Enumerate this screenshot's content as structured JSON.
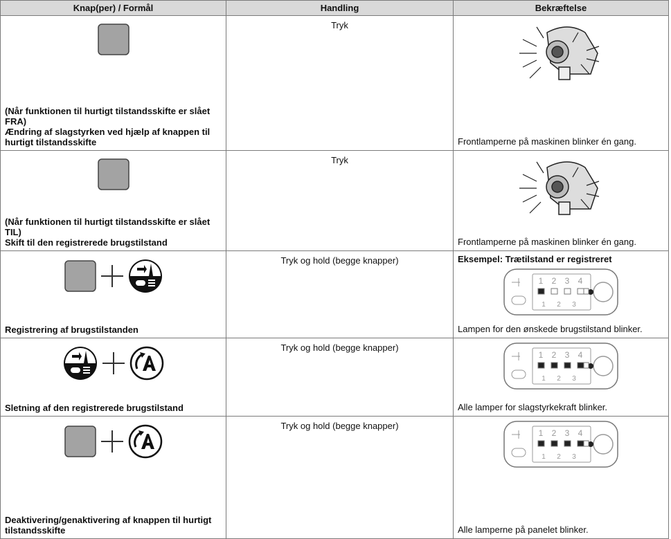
{
  "table": {
    "headers": [
      "Knap(per) / Formål",
      "Handling",
      "Bekræftelse"
    ],
    "rows": [
      {
        "purpose": [
          "(Når funktionen til hurtigt tilstandsskifte er slået FRA)",
          "Ændring af slagstyrken ved hjælp af knappen til hurtigt tilstandsskifte"
        ],
        "action": "Tryk",
        "confirmation": "Frontlamperne på maskinen blinker én gang."
      },
      {
        "purpose": [
          "(Når funktionen til hurtigt tilstandsskifte er slået TIL)",
          "Skift til den registrerede brugstilstand"
        ],
        "action": "Tryk",
        "confirmation": "Frontlamperne på maskinen blinker én gang."
      },
      {
        "purpose": [
          "Registrering af brugstilstanden"
        ],
        "action": "Tryk og hold (begge knapper)",
        "example": "Eksempel: Trætilstand er registreret",
        "confirmation": "Lampen for den ønskede brugstilstand blinker."
      },
      {
        "purpose": [
          "Sletning af den registrerede brugstilstand"
        ],
        "action": "Tryk og hold (begge knapper)",
        "confirmation": "Alle lamper for slagstyrkekraft blinker."
      },
      {
        "purpose": [
          "Deaktivering/genaktivering af knappen til hurtigt tilstandsskifte"
        ],
        "action": "Tryk og hold (begge knapper)",
        "confirmation": "Alle lamperne på panelet blinker."
      }
    ]
  },
  "panel": {
    "top_digits": [
      "1",
      "2",
      "3",
      "4"
    ],
    "bottom_digits": [
      "1",
      "2",
      "3"
    ]
  }
}
